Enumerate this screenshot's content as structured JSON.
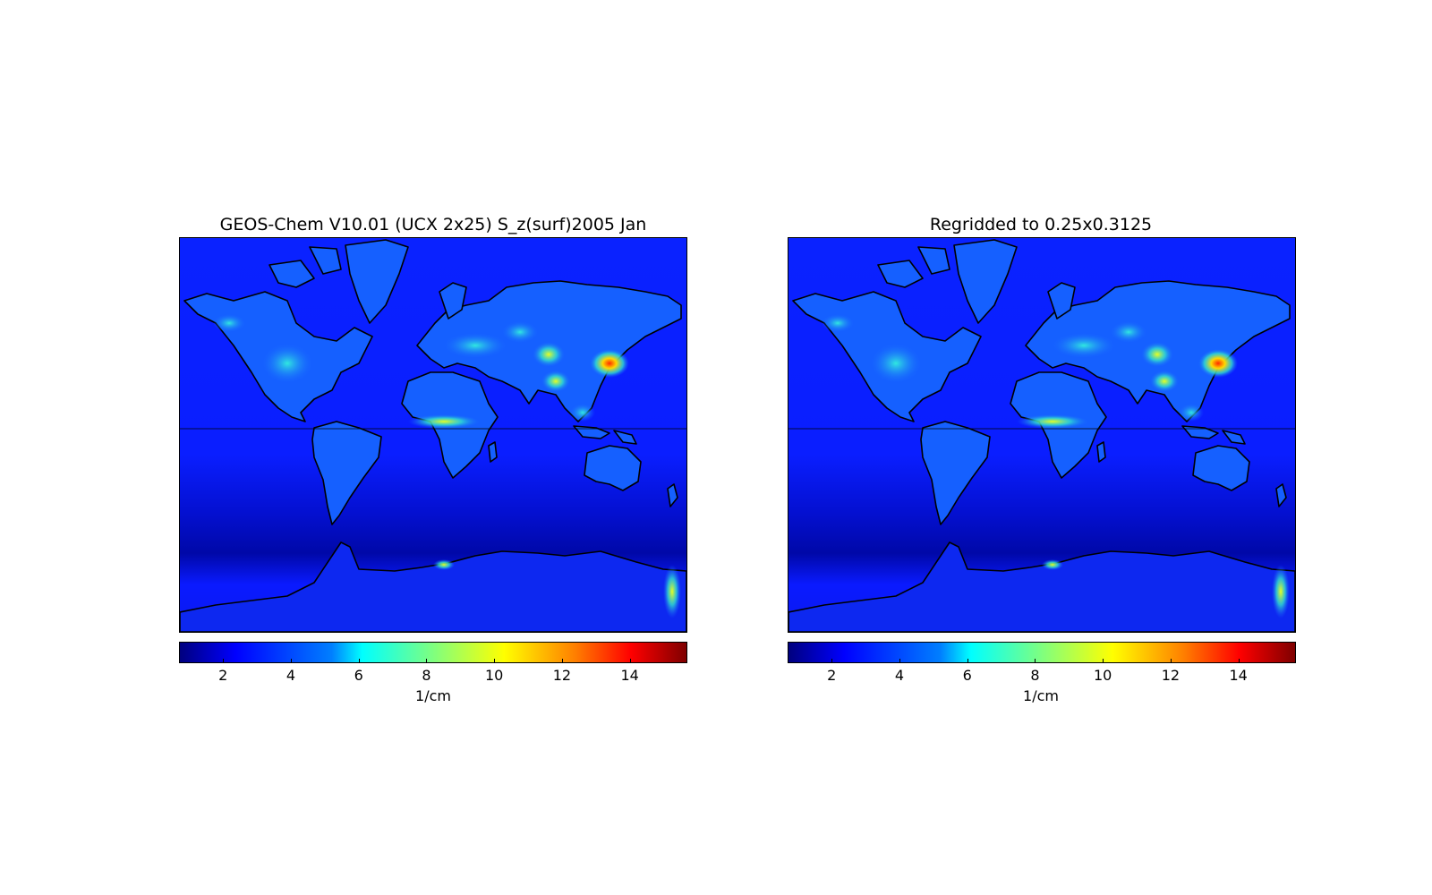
{
  "maps": [
    {
      "title": "GEOS-Chem V10.01 (UCX 2x25) S_z(surf)2005 Jan",
      "colorbar_label": "1/cm",
      "colorbar_range": [
        0.7,
        15.7
      ],
      "colorbar_ticks": [
        "2",
        "4",
        "6",
        "8",
        "10",
        "12",
        "14"
      ]
    },
    {
      "title": "Regridded to 0.25x0.3125",
      "colorbar_label": "1/cm",
      "colorbar_range": [
        0.7,
        15.7
      ],
      "colorbar_ticks": [
        "2",
        "4",
        "6",
        "8",
        "10",
        "12",
        "14"
      ]
    }
  ],
  "colormap": "jet",
  "colors": {
    "ocean": "#0a1eff",
    "southern_ocean": "#0008b8",
    "land": "#1a6cff",
    "hotspot_mid": "#2fe8d0",
    "hotspot_high": "#ffe600",
    "hotspot_max": "#ff3a00",
    "coastline": "#000000"
  }
}
